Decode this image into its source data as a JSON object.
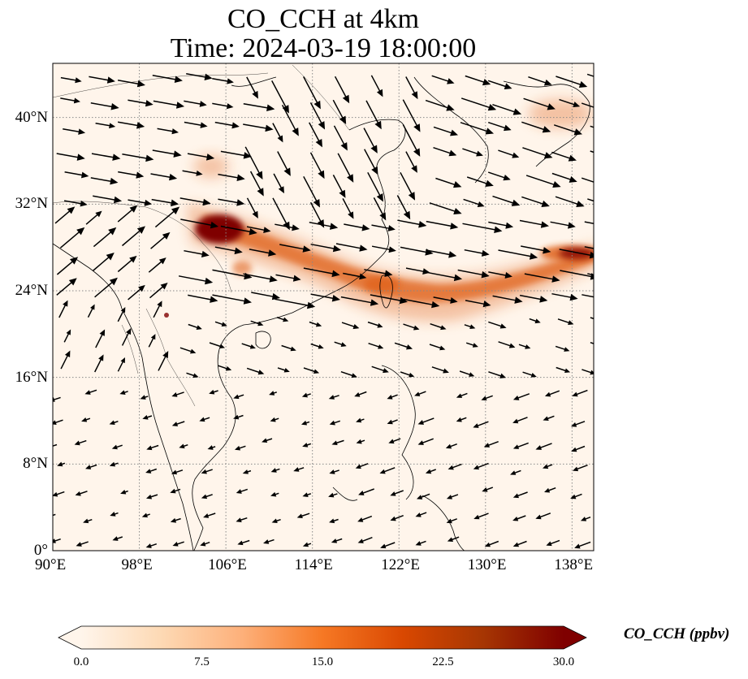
{
  "title": {
    "line1": "CO_CCH at 4km",
    "line2": "Time: 2024-03-19 18:00:00"
  },
  "map": {
    "extent": {
      "lon_min": 90,
      "lon_max": 140,
      "lat_min": 0,
      "lat_max": 45
    },
    "lon_ticks": [
      {
        "value": 90,
        "label": "90°E"
      },
      {
        "value": 98,
        "label": "98°E"
      },
      {
        "value": 106,
        "label": "106°E"
      },
      {
        "value": 114,
        "label": "114°E"
      },
      {
        "value": 122,
        "label": "122°E"
      },
      {
        "value": 130,
        "label": "130°E"
      },
      {
        "value": 138,
        "label": "138°E"
      }
    ],
    "lat_ticks": [
      {
        "value": 0,
        "label": "0°"
      },
      {
        "value": 8,
        "label": "8°N"
      },
      {
        "value": 16,
        "label": "16°N"
      },
      {
        "value": 24,
        "label": "24°N"
      },
      {
        "value": 32,
        "label": "32°N"
      },
      {
        "value": 40,
        "label": "40°N"
      }
    ],
    "gridlines": true,
    "field_background_color": "#fff5eb",
    "plume_color": "#e0631c",
    "hotspot_color": "#7f0000"
  },
  "colorbar": {
    "min": 0,
    "max": 30,
    "ticks": [
      {
        "value": 0,
        "label": "0.0"
      },
      {
        "value": 7.5,
        "label": "7.5"
      },
      {
        "value": 15,
        "label": "15.0"
      },
      {
        "value": 22.5,
        "label": "22.5"
      },
      {
        "value": 30,
        "label": "30.0"
      }
    ],
    "label": "CO_CCH (ppbv)",
    "extend": "both",
    "colors": [
      "#fff5eb",
      "#fdd9b4",
      "#fdb07a",
      "#f67824",
      "#d94801",
      "#a63603",
      "#7f0000"
    ]
  }
}
